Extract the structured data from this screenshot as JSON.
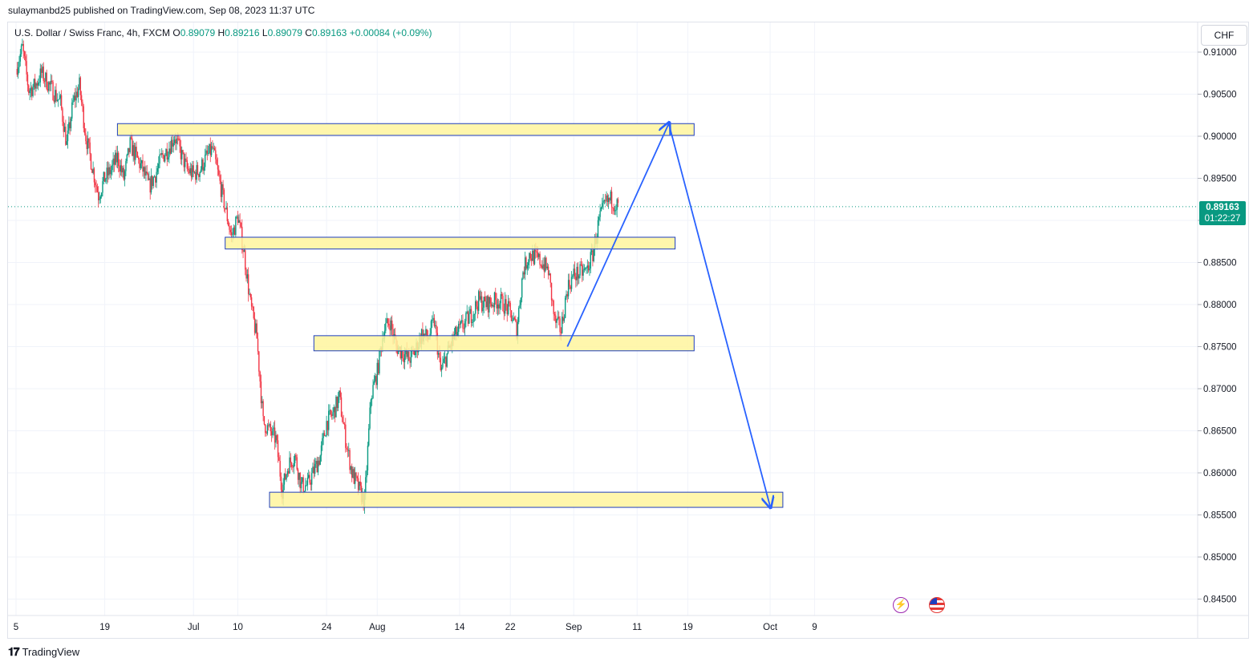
{
  "publisher_line": "sulaymanbd25 published on TradingView.com, Sep 08, 2023 11:37 UTC",
  "legend": {
    "symbol": "U.S. Dollar / Swiss Franc, 4h, FXCM",
    "o_label": "O",
    "o": "0.89079",
    "h_label": "H",
    "h": "0.89216",
    "l_label": "L",
    "l": "0.89079",
    "c_label": "C",
    "c": "0.89163",
    "change": "+0.00084 (+0.09%)"
  },
  "currency_button": "CHF",
  "last_price": "0.89163",
  "countdown": "01:22:27",
  "footer_brand": "TradingView",
  "colors": {
    "up": "#089981",
    "down": "#f23645",
    "zone_fill": "#fff59d",
    "zone_border": "#1e3fbf",
    "arrow": "#2962ff"
  },
  "icons": [
    "lightning-icon",
    "us-flag-icon",
    "tradingview-logo-icon"
  ],
  "chart_data": {
    "type": "candlestick",
    "y_ticks": [
      "0.91000",
      "0.90500",
      "0.90000",
      "0.89500",
      "0.89000",
      "0.88500",
      "0.88000",
      "0.87500",
      "0.87000",
      "0.86500",
      "0.86000",
      "0.85500",
      "0.85000",
      "0.84500"
    ],
    "x_ticks": [
      {
        "label": "5",
        "date": "2023-06-05"
      },
      {
        "label": "19",
        "date": "2023-06-19"
      },
      {
        "label": "Jul",
        "date": "2023-07-03"
      },
      {
        "label": "10",
        "date": "2023-07-10"
      },
      {
        "label": "24",
        "date": "2023-07-24"
      },
      {
        "label": "Aug",
        "date": "2023-08-01"
      },
      {
        "label": "14",
        "date": "2023-08-14"
      },
      {
        "label": "22",
        "date": "2023-08-22"
      },
      {
        "label": "Sep",
        "date": "2023-09-01"
      },
      {
        "label": "11",
        "date": "2023-09-11"
      },
      {
        "label": "19",
        "date": "2023-09-19"
      },
      {
        "label": "Oct",
        "date": "2023-10-02"
      },
      {
        "label": "9",
        "date": "2023-10-09"
      }
    ],
    "price_path": [
      [
        "2023-06-05",
        0.908
      ],
      [
        "2023-06-06",
        0.9105
      ],
      [
        "2023-06-07",
        0.9055
      ],
      [
        "2023-06-08",
        0.906
      ],
      [
        "2023-06-09",
        0.9075
      ],
      [
        "2023-06-12",
        0.904
      ],
      [
        "2023-06-13",
        0.899
      ],
      [
        "2023-06-14",
        0.904
      ],
      [
        "2023-06-15",
        0.906
      ],
      [
        "2023-06-16",
        0.9
      ],
      [
        "2023-06-18",
        0.893
      ],
      [
        "2023-06-19",
        0.895
      ],
      [
        "2023-06-20",
        0.896
      ],
      [
        "2023-06-21",
        0.8975
      ],
      [
        "2023-06-22",
        0.895
      ],
      [
        "2023-06-23",
        0.899
      ],
      [
        "2023-06-25",
        0.896
      ],
      [
        "2023-06-26",
        0.894
      ],
      [
        "2023-06-27",
        0.8955
      ],
      [
        "2023-06-28",
        0.8975
      ],
      [
        "2023-06-29",
        0.8985
      ],
      [
        "2023-06-30",
        0.9
      ],
      [
        "2023-07-02",
        0.896
      ],
      [
        "2023-07-03",
        0.8955
      ],
      [
        "2023-07-04",
        0.896
      ],
      [
        "2023-07-05",
        0.8975
      ],
      [
        "2023-07-06",
        0.8985
      ],
      [
        "2023-07-07",
        0.895
      ],
      [
        "2023-07-09",
        0.888
      ],
      [
        "2023-07-10",
        0.8905
      ],
      [
        "2023-07-11",
        0.886
      ],
      [
        "2023-07-12",
        0.88
      ],
      [
        "2023-07-13",
        0.876
      ],
      [
        "2023-07-14",
        0.866
      ],
      [
        "2023-07-16",
        0.864
      ],
      [
        "2023-07-17",
        0.858
      ],
      [
        "2023-07-18",
        0.861
      ],
      [
        "2023-07-19",
        0.862
      ],
      [
        "2023-07-20",
        0.8585
      ],
      [
        "2023-07-21",
        0.8585
      ],
      [
        "2023-07-23",
        0.862
      ],
      [
        "2023-07-24",
        0.866
      ],
      [
        "2023-07-25",
        0.867
      ],
      [
        "2023-07-26",
        0.869
      ],
      [
        "2023-07-27",
        0.864
      ],
      [
        "2023-07-28",
        0.86
      ],
      [
        "2023-07-30",
        0.8565
      ],
      [
        "2023-07-31",
        0.869
      ],
      [
        "2023-08-01",
        0.872
      ],
      [
        "2023-08-02",
        0.877
      ],
      [
        "2023-08-03",
        0.878
      ],
      [
        "2023-08-04",
        0.875
      ],
      [
        "2023-08-06",
        0.8735
      ],
      [
        "2023-08-07",
        0.8745
      ],
      [
        "2023-08-08",
        0.8765
      ],
      [
        "2023-08-09",
        0.876
      ],
      [
        "2023-08-10",
        0.878
      ],
      [
        "2023-08-11",
        0.872
      ],
      [
        "2023-08-13",
        0.876
      ],
      [
        "2023-08-14",
        0.877
      ],
      [
        "2023-08-15",
        0.878
      ],
      [
        "2023-08-16",
        0.879
      ],
      [
        "2023-08-17",
        0.8805
      ],
      [
        "2023-08-18",
        0.88
      ],
      [
        "2023-08-20",
        0.8805
      ],
      [
        "2023-08-21",
        0.88
      ],
      [
        "2023-08-22",
        0.879
      ],
      [
        "2023-08-23",
        0.877
      ],
      [
        "2023-08-24",
        0.884
      ],
      [
        "2023-08-25",
        0.886
      ],
      [
        "2023-08-27",
        0.885
      ],
      [
        "2023-08-28",
        0.884
      ],
      [
        "2023-08-29",
        0.878
      ],
      [
        "2023-08-30",
        0.877
      ],
      [
        "2023-08-31",
        0.882
      ],
      [
        "2023-09-01",
        0.8835
      ],
      [
        "2023-09-03",
        0.884
      ],
      [
        "2023-09-04",
        0.886
      ],
      [
        "2023-09-05",
        0.89
      ],
      [
        "2023-09-06",
        0.892
      ],
      [
        "2023-09-07",
        0.8925
      ],
      [
        "2023-09-08",
        0.8916
      ]
    ],
    "zones": [
      {
        "from": "2023-06-21",
        "to": "2023-09-20",
        "high": 0.9015,
        "low": 0.9001
      },
      {
        "from": "2023-07-08",
        "to": "2023-09-17",
        "high": 0.888,
        "low": 0.8866
      },
      {
        "from": "2023-07-22",
        "to": "2023-09-20",
        "high": 0.8763,
        "low": 0.8745
      },
      {
        "from": "2023-07-15",
        "to": "2023-10-04",
        "high": 0.8577,
        "low": 0.8559
      }
    ],
    "drawn_path": [
      [
        "2023-08-31",
        0.875
      ],
      [
        "2023-09-16",
        0.9015
      ],
      [
        "2023-10-02",
        0.856
      ]
    ],
    "last_price_line": 0.89163
  }
}
